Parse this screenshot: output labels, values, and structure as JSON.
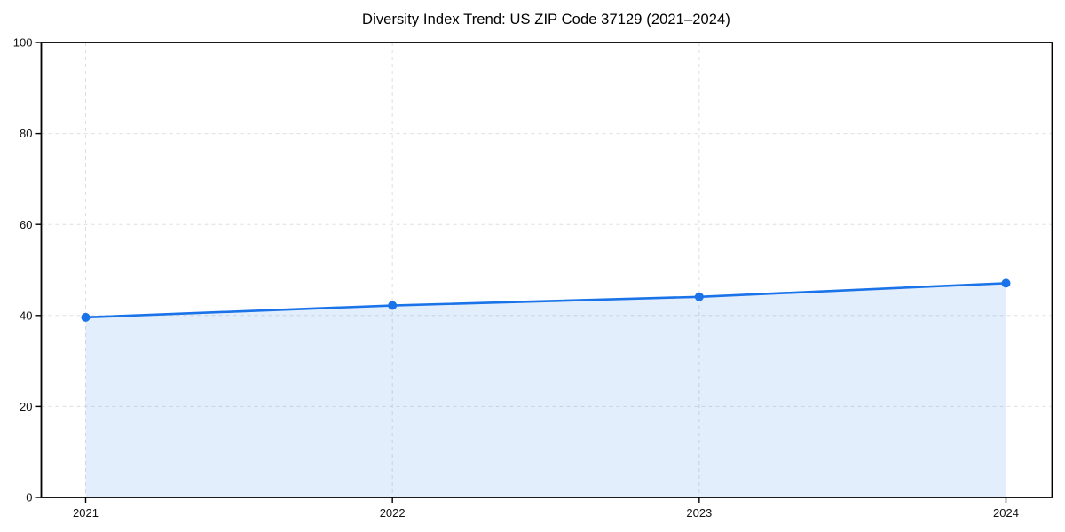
{
  "page": {
    "background": "#ffffff"
  },
  "chart_data": {
    "type": "line",
    "title": "Diversity Index Trend: US ZIP Code 37129 (2021–2024)",
    "categories": [
      "2021",
      "2022",
      "2023",
      "2024"
    ],
    "series": [
      {
        "name": "Diversity Index",
        "values": [
          39.6,
          42.2,
          44.1,
          47.1
        ]
      }
    ],
    "xlabel": "",
    "ylabel": "",
    "ylim": [
      0,
      100
    ],
    "yticks": [
      0,
      20,
      40,
      60,
      80,
      100
    ],
    "grid": true,
    "grid_style": "dashed",
    "legend_position": "none",
    "area_fill": true,
    "marker": "circle",
    "colors": {
      "line": "#1a73e8",
      "marker": "#1a73e8",
      "area": "rgba(26,115,232,0.12)",
      "grid": "#dfdfdf",
      "spine": "#000000",
      "tick_text": "#111111",
      "title_text": "#000000"
    }
  }
}
